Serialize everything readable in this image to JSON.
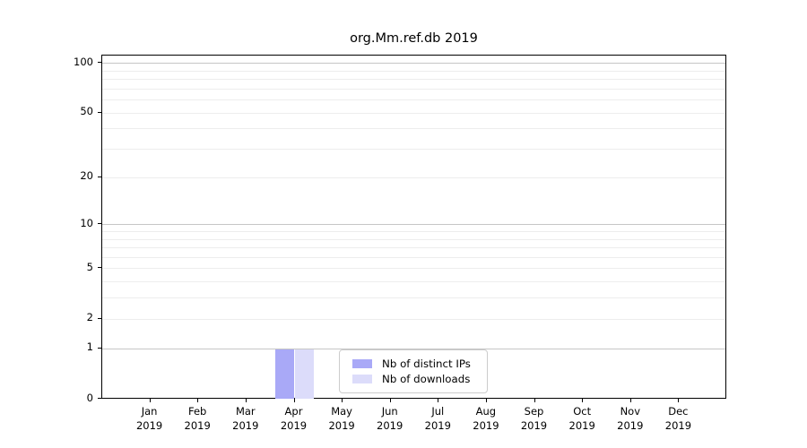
{
  "chart_data": {
    "type": "bar",
    "title": "org.Mm.ref.db 2019",
    "categories": [
      "Jan 2019",
      "Feb 2019",
      "Mar 2019",
      "Apr 2019",
      "May 2019",
      "Jun 2019",
      "Jul 2019",
      "Aug 2019",
      "Sep 2019",
      "Oct 2019",
      "Nov 2019",
      "Dec 2019"
    ],
    "series": [
      {
        "name": "Nb of distinct IPs",
        "color": "#a9a9f7",
        "values": [
          0,
          0,
          0,
          1,
          0,
          0,
          0,
          0,
          0,
          0,
          0,
          0
        ]
      },
      {
        "name": "Nb of downloads",
        "color": "#dcdcfa",
        "values": [
          0,
          0,
          0,
          1,
          0,
          0,
          0,
          0,
          0,
          0,
          0,
          0
        ]
      }
    ],
    "xlabel": "",
    "ylabel": "",
    "yscale": "log1p",
    "ylim": [
      0,
      112
    ],
    "yticks": [
      0,
      1,
      2,
      5,
      10,
      20,
      50,
      100
    ],
    "grid": {
      "horizontal": true,
      "vertical": false,
      "major_values": [
        1,
        10,
        100
      ],
      "minor_values": [
        2,
        3,
        4,
        5,
        6,
        7,
        8,
        9,
        20,
        30,
        40,
        50,
        60,
        70,
        80,
        90
      ]
    },
    "legend": {
      "position": "inside-bottom-center-right",
      "entries": [
        "Nb of distinct IPs",
        "Nb of downloads"
      ]
    }
  },
  "colors": {
    "background": "#ffffff",
    "axis": "#000000",
    "text": "#000000",
    "grid_major": "#c6c6c6",
    "grid_minor": "#ededed",
    "legend_border": "#cccccc",
    "bar_distinct_ips": "#a9a9f7",
    "bar_downloads": "#dcdcfa"
  }
}
